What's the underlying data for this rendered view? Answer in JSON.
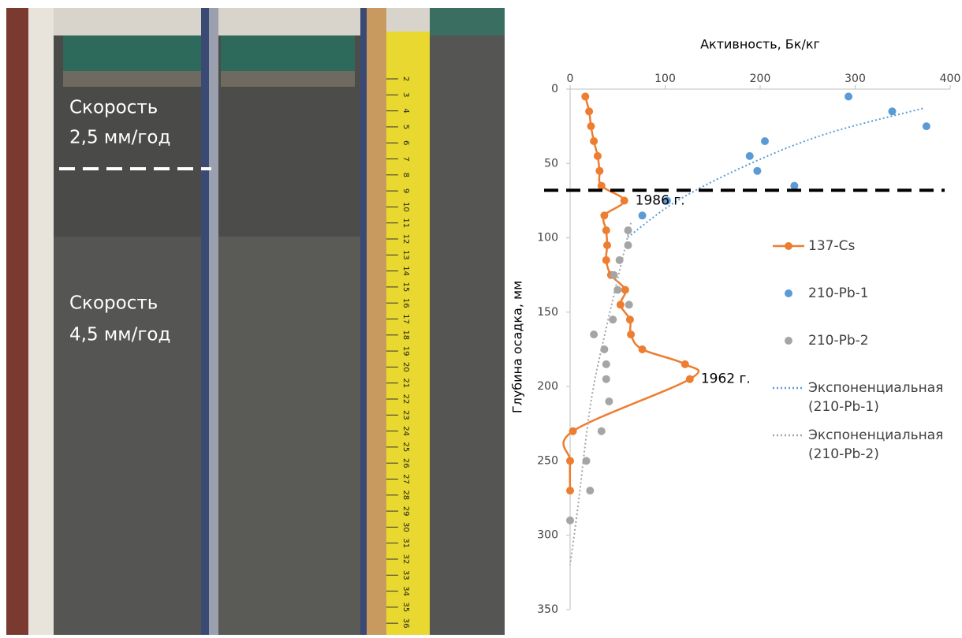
{
  "photo": {
    "upper_label": [
      "Скорость",
      "2,5 мм/год"
    ],
    "lower_label": [
      "Скорость",
      "4,5 мм/год"
    ],
    "tape_numbers": [
      "2",
      "3",
      "4",
      "5",
      "6",
      "7",
      "8",
      "9",
      "10",
      "11",
      "12",
      "13",
      "14",
      "15",
      "16",
      "17",
      "18",
      "19",
      "20",
      "21",
      "22",
      "23",
      "24",
      "25",
      "26",
      "27",
      "28",
      "29",
      "30",
      "31",
      "32",
      "33",
      "34",
      "35",
      "36"
    ]
  },
  "chart_data": {
    "type": "scatter",
    "x_label": "Активность, Бк/кг",
    "y_label": "Глубина осадка, мм",
    "xlim": [
      0,
      400
    ],
    "xticks": [
      0,
      100,
      200,
      300,
      400
    ],
    "ylim": [
      0,
      350
    ],
    "yticks": [
      0,
      50,
      100,
      150,
      200,
      250,
      300,
      350
    ],
    "y_inverted": true,
    "threshold_depth": 68,
    "annotations": [
      {
        "text": "1986 г.",
        "x": 57,
        "y": 75
      },
      {
        "text": "1962 г.",
        "x": 126,
        "y": 195
      }
    ],
    "series": [
      {
        "name": "137-Cs",
        "color": "#ed7d31",
        "style": "line-markers",
        "x": [
          16,
          20,
          22,
          25,
          29,
          31,
          33,
          57,
          36,
          38,
          39,
          38,
          43,
          58,
          53,
          63,
          64,
          76,
          121,
          126,
          3,
          0,
          0
        ],
        "y": [
          5,
          15,
          25,
          35,
          45,
          55,
          65,
          75,
          85,
          95,
          105,
          115,
          125,
          135,
          145,
          155,
          165,
          175,
          185,
          195,
          230,
          250,
          270
        ]
      },
      {
        "name": "210-Pb-1",
        "color": "#5b9bd5",
        "style": "markers",
        "x": [
          293,
          339,
          375,
          205,
          189,
          197,
          236,
          102,
          76
        ],
        "y": [
          5,
          15,
          25,
          35,
          45,
          55,
          65,
          75,
          85
        ]
      },
      {
        "name": "210-Pb-2",
        "color": "#a5a5a5",
        "style": "markers",
        "x": [
          61,
          61,
          52,
          46,
          50,
          62,
          45,
          25,
          36,
          38,
          38,
          41,
          33,
          17,
          21,
          0
        ],
        "y": [
          95,
          105,
          115,
          125,
          135,
          145,
          155,
          165,
          175,
          185,
          195,
          210,
          230,
          250,
          270,
          290
        ]
      },
      {
        "name": "Экспоненциальная (210-Pb-1)",
        "color": "#5b9bd5",
        "style": "dotted",
        "x": [
          371,
          270,
          190,
          113,
          60
        ],
        "y": [
          13,
          30,
          50,
          75,
          100
        ]
      },
      {
        "name": "Экспоненциальная (210-Pb-2)",
        "color": "#a5a5a5",
        "style": "dotted",
        "x": [
          64,
          39,
          22,
          8,
          0
        ],
        "y": [
          90,
          158,
          210,
          282,
          320
        ]
      }
    ]
  }
}
